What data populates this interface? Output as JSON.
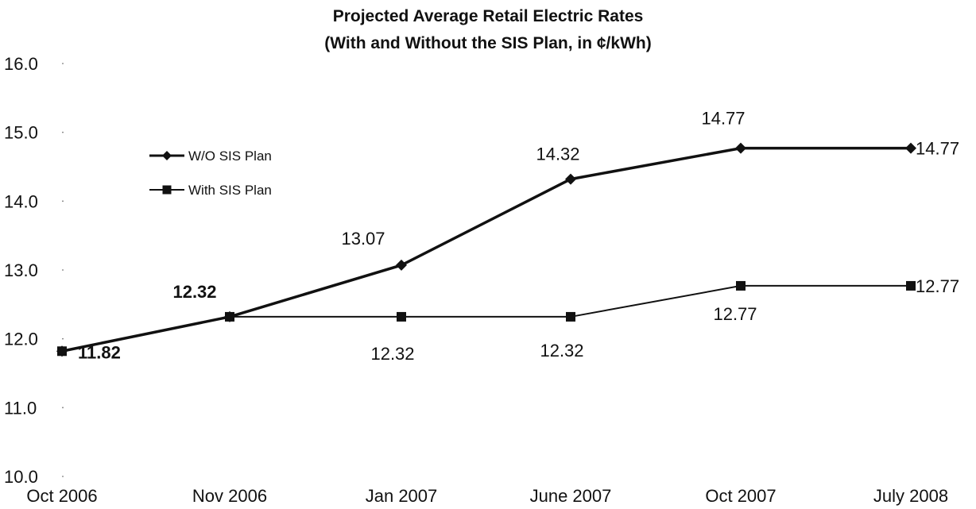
{
  "chart_data": {
    "type": "line",
    "title_line1": "Projected Average Retail Electric Rates",
    "title_line2": "(With and Without the SIS Plan, in ¢/kWh)",
    "categories": [
      "Oct 2006",
      "Nov 2006",
      "Jan 2007",
      "June 2007",
      "Oct 2007",
      "July 2008"
    ],
    "ylim": [
      10.0,
      16.0
    ],
    "yticks": [
      "10.0",
      "11.0",
      "12.0",
      "13.0",
      "14.0",
      "15.0",
      "16.0"
    ],
    "grid": false,
    "legend_position": "upper-left",
    "series": [
      {
        "name": "W/O SIS Plan",
        "marker": "diamond",
        "values": [
          11.82,
          12.32,
          13.07,
          14.32,
          14.77,
          14.77
        ],
        "labels": [
          "11.82",
          "12.32",
          "13.07",
          "14.32",
          "14.77",
          "14.77"
        ]
      },
      {
        "name": "With SIS Plan",
        "marker": "square",
        "values": [
          11.82,
          12.32,
          12.32,
          12.32,
          12.77,
          12.77
        ],
        "labels": [
          "",
          "",
          "12.32",
          "12.32",
          "12.77",
          "12.77"
        ]
      }
    ]
  }
}
